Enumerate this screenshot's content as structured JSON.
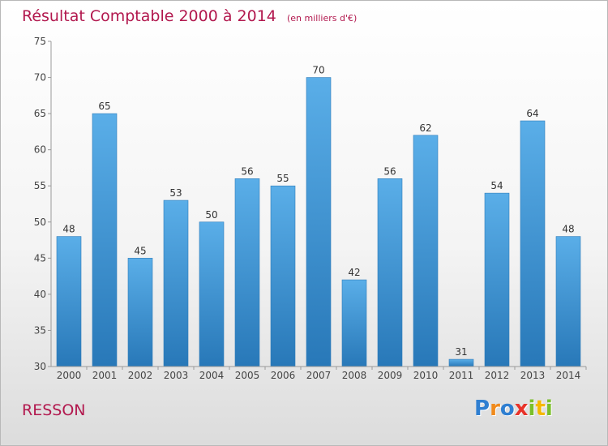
{
  "chart_data": {
    "type": "bar",
    "title": "Résultat Comptable 2000 à 2014",
    "subtitle": "(en milliers d'€)",
    "categories": [
      "2000",
      "2001",
      "2002",
      "2003",
      "2004",
      "2005",
      "2006",
      "2007",
      "2008",
      "2009",
      "2010",
      "2011",
      "2012",
      "2013",
      "2014"
    ],
    "values": [
      48,
      65,
      45,
      53,
      50,
      56,
      55,
      70,
      42,
      56,
      62,
      31,
      54,
      64,
      48
    ],
    "ylim": [
      30,
      75
    ],
    "yticks": [
      30,
      35,
      40,
      45,
      50,
      55,
      60,
      65,
      70,
      75
    ],
    "grid": false,
    "bar_color": "#2e88cc"
  },
  "commune": "RESSON",
  "logo": {
    "letters": [
      {
        "ch": "P",
        "color": "#2f7fd1"
      },
      {
        "ch": "r",
        "color": "#f08a1c"
      },
      {
        "ch": "o",
        "color": "#2f7fd1"
      },
      {
        "ch": "x",
        "color": "#e8332a"
      },
      {
        "ch": "i",
        "color": "#7bbf2a"
      },
      {
        "ch": "t",
        "color": "#f5b800"
      },
      {
        "ch": "i",
        "color": "#7bbf2a"
      }
    ]
  }
}
